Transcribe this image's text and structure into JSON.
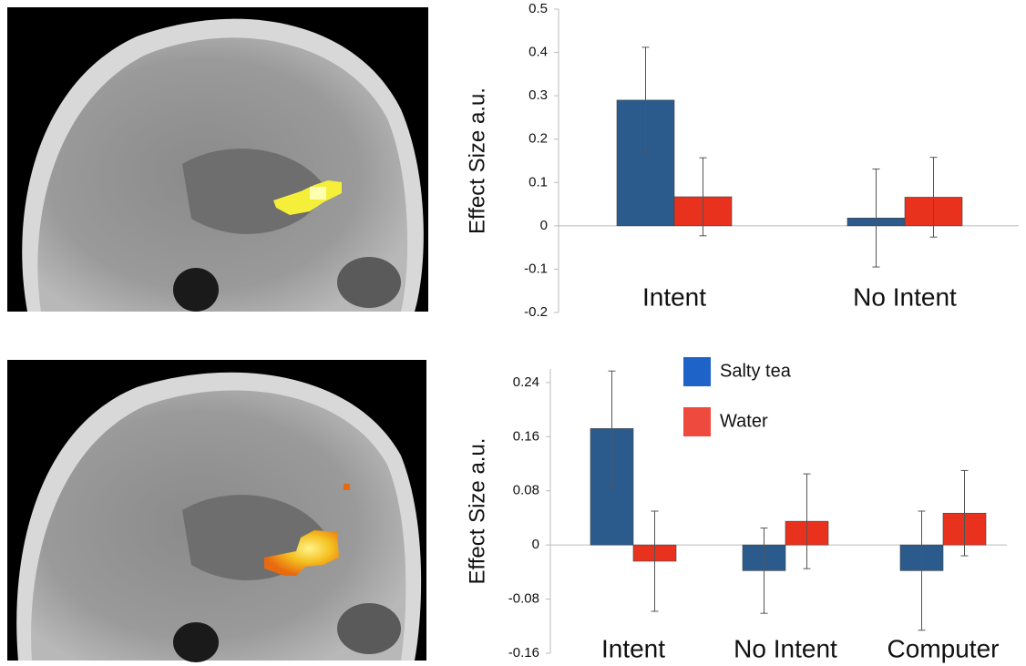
{
  "chart_data": [
    {
      "type": "bar",
      "y_label": "Effect Size a.u.",
      "categories": [
        "Intent",
        "No Intent"
      ],
      "series": [
        {
          "color": "#2b5a8c",
          "values": [
            0.29,
            0.018
          ],
          "errors": [
            0.122,
            0.113
          ]
        },
        {
          "color": "#e8321e",
          "values": [
            0.067,
            0.066
          ],
          "errors": [
            0.09,
            0.092
          ]
        }
      ],
      "ylim": [
        -0.2,
        0.5
      ],
      "yticks": [
        0.5,
        0.4,
        0.3,
        0.2,
        0.1,
        0,
        -0.1,
        -0.2
      ],
      "grid": false
    },
    {
      "type": "bar",
      "y_label": "Effect Size a.u.",
      "categories": [
        "Intent",
        "No Intent",
        "Computer"
      ],
      "series": [
        {
          "name": "Salty tea",
          "color": "#2b5a8c",
          "legend_color": "#1e64c8",
          "values": [
            0.172,
            -0.038,
            -0.038
          ],
          "errors": [
            0.085,
            0.063,
            0.088
          ]
        },
        {
          "name": "Water",
          "color": "#e8321e",
          "legend_color": "#ee4a3e",
          "values": [
            -0.024,
            0.035,
            0.047
          ],
          "errors": [
            0.074,
            0.07,
            0.063
          ]
        }
      ],
      "ylim": [
        -0.16,
        0.26
      ],
      "yticks": [
        0.24,
        0.16,
        0.08,
        0,
        -0.08,
        -0.16
      ],
      "grid": false
    }
  ]
}
